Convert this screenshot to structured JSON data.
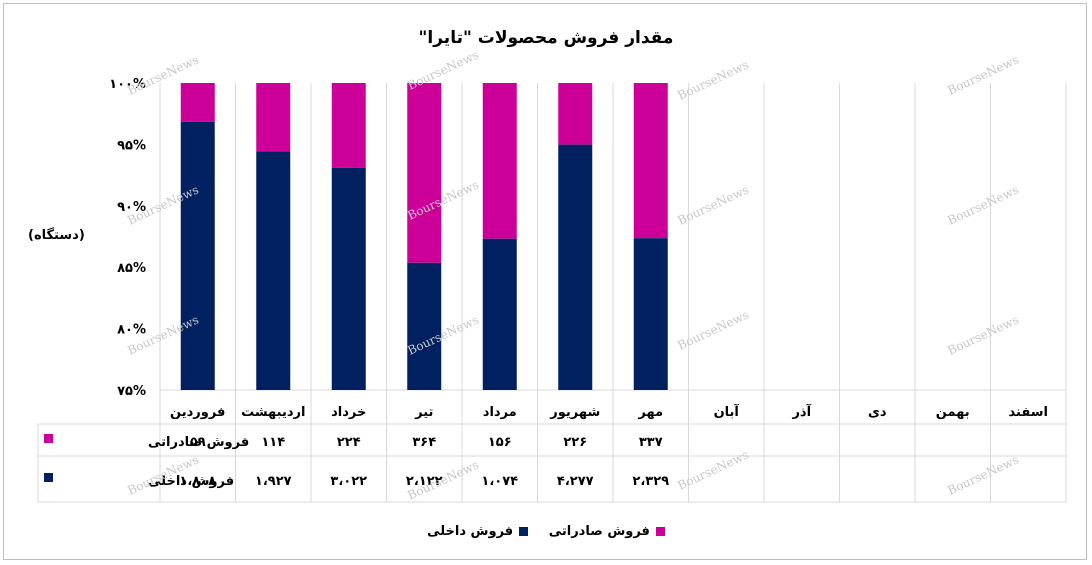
{
  "chart_data": {
    "type": "bar",
    "stacked": "percent",
    "title": "مقدار فروش محصولات \"تایرا\"",
    "ylabel": "(دستگاه)",
    "ylim": [
      75,
      100
    ],
    "y_ticks": [
      75,
      80,
      85,
      90,
      95,
      100
    ],
    "y_tick_labels": [
      "۷۵%",
      "۸۰%",
      "۸۵%",
      "۹۰%",
      "۹۵%",
      "۱۰۰%"
    ],
    "categories": [
      "فروردین",
      "اردیبهشت",
      "خرداد",
      "تیر",
      "مرداد",
      "شهریور",
      "مهر",
      "آبان",
      "آذر",
      "دی",
      "بهمن",
      "اسفند"
    ],
    "series": [
      {
        "name": "فروش صادراتی",
        "color": "#CC0099",
        "values": [
          59,
          114,
          224,
          364,
          156,
          226,
          337,
          null,
          null,
          null,
          null,
          null
        ],
        "value_labels": [
          "۵۹",
          "۱۱۴",
          "۲۲۴",
          "۳۶۴",
          "۱۵۶",
          "۲۲۶",
          "۳۳۷",
          "",
          "",
          "",
          "",
          ""
        ]
      },
      {
        "name": "فروش داخلی",
        "color": "#002060",
        "values": [
          1808,
          1927,
          3022,
          2122,
          1074,
          4277,
          2329,
          null,
          null,
          null,
          null,
          null
        ],
        "value_labels": [
          "۱،۸۰۸",
          "۱،۹۲۷",
          "۳،۰۲۲",
          "۲،۱۲۲",
          "۱،۰۷۴",
          "۴،۲۷۷",
          "۲،۳۲۹",
          "",
          "",
          "",
          "",
          ""
        ]
      }
    ],
    "grid": true,
    "legend": "bottom-center",
    "data_table": true
  },
  "watermark_text": "BourseNews"
}
